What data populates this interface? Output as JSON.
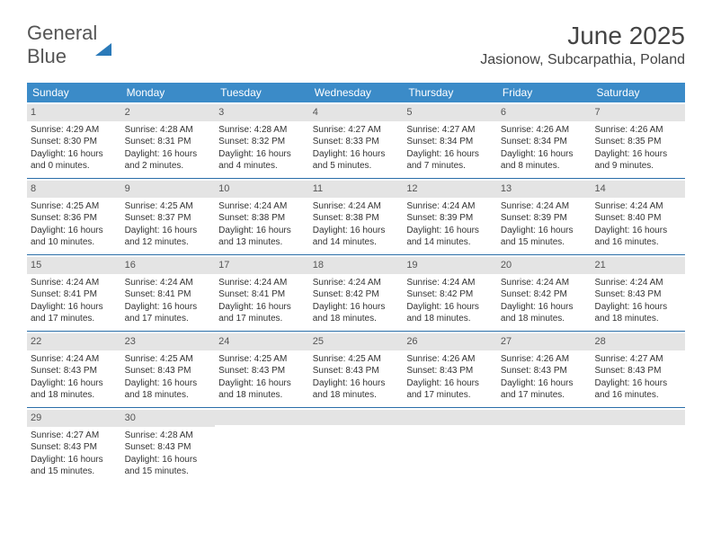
{
  "logo": {
    "word1": "General",
    "word2": "Blue"
  },
  "title": "June 2025",
  "location": "Jasionow, Subcarpathia, Poland",
  "colors": {
    "header_bg": "#3b8bc8",
    "header_text": "#ffffff",
    "daynum_bg": "#e4e4e4",
    "week_divider": "#2a6ea8",
    "body_text": "#333333",
    "logo_gray": "#555555",
    "logo_blue": "#2a7ab9"
  },
  "typography": {
    "title_fontsize": 28,
    "location_fontsize": 16,
    "dow_fontsize": 12,
    "cell_fontsize": 10
  },
  "days_of_week": [
    "Sunday",
    "Monday",
    "Tuesday",
    "Wednesday",
    "Thursday",
    "Friday",
    "Saturday"
  ],
  "weeks": [
    [
      {
        "n": "1",
        "sr": "4:29 AM",
        "ss": "8:30 PM",
        "dlh": "16",
        "dlm": "0"
      },
      {
        "n": "2",
        "sr": "4:28 AM",
        "ss": "8:31 PM",
        "dlh": "16",
        "dlm": "2"
      },
      {
        "n": "3",
        "sr": "4:28 AM",
        "ss": "8:32 PM",
        "dlh": "16",
        "dlm": "4"
      },
      {
        "n": "4",
        "sr": "4:27 AM",
        "ss": "8:33 PM",
        "dlh": "16",
        "dlm": "5"
      },
      {
        "n": "5",
        "sr": "4:27 AM",
        "ss": "8:34 PM",
        "dlh": "16",
        "dlm": "7"
      },
      {
        "n": "6",
        "sr": "4:26 AM",
        "ss": "8:34 PM",
        "dlh": "16",
        "dlm": "8"
      },
      {
        "n": "7",
        "sr": "4:26 AM",
        "ss": "8:35 PM",
        "dlh": "16",
        "dlm": "9"
      }
    ],
    [
      {
        "n": "8",
        "sr": "4:25 AM",
        "ss": "8:36 PM",
        "dlh": "16",
        "dlm": "10"
      },
      {
        "n": "9",
        "sr": "4:25 AM",
        "ss": "8:37 PM",
        "dlh": "16",
        "dlm": "12"
      },
      {
        "n": "10",
        "sr": "4:24 AM",
        "ss": "8:38 PM",
        "dlh": "16",
        "dlm": "13"
      },
      {
        "n": "11",
        "sr": "4:24 AM",
        "ss": "8:38 PM",
        "dlh": "16",
        "dlm": "14"
      },
      {
        "n": "12",
        "sr": "4:24 AM",
        "ss": "8:39 PM",
        "dlh": "16",
        "dlm": "14"
      },
      {
        "n": "13",
        "sr": "4:24 AM",
        "ss": "8:39 PM",
        "dlh": "16",
        "dlm": "15"
      },
      {
        "n": "14",
        "sr": "4:24 AM",
        "ss": "8:40 PM",
        "dlh": "16",
        "dlm": "16"
      }
    ],
    [
      {
        "n": "15",
        "sr": "4:24 AM",
        "ss": "8:41 PM",
        "dlh": "16",
        "dlm": "17"
      },
      {
        "n": "16",
        "sr": "4:24 AM",
        "ss": "8:41 PM",
        "dlh": "16",
        "dlm": "17"
      },
      {
        "n": "17",
        "sr": "4:24 AM",
        "ss": "8:41 PM",
        "dlh": "16",
        "dlm": "17"
      },
      {
        "n": "18",
        "sr": "4:24 AM",
        "ss": "8:42 PM",
        "dlh": "16",
        "dlm": "18"
      },
      {
        "n": "19",
        "sr": "4:24 AM",
        "ss": "8:42 PM",
        "dlh": "16",
        "dlm": "18"
      },
      {
        "n": "20",
        "sr": "4:24 AM",
        "ss": "8:42 PM",
        "dlh": "16",
        "dlm": "18"
      },
      {
        "n": "21",
        "sr": "4:24 AM",
        "ss": "8:43 PM",
        "dlh": "16",
        "dlm": "18"
      }
    ],
    [
      {
        "n": "22",
        "sr": "4:24 AM",
        "ss": "8:43 PM",
        "dlh": "16",
        "dlm": "18"
      },
      {
        "n": "23",
        "sr": "4:25 AM",
        "ss": "8:43 PM",
        "dlh": "16",
        "dlm": "18"
      },
      {
        "n": "24",
        "sr": "4:25 AM",
        "ss": "8:43 PM",
        "dlh": "16",
        "dlm": "18"
      },
      {
        "n": "25",
        "sr": "4:25 AM",
        "ss": "8:43 PM",
        "dlh": "16",
        "dlm": "18"
      },
      {
        "n": "26",
        "sr": "4:26 AM",
        "ss": "8:43 PM",
        "dlh": "16",
        "dlm": "17"
      },
      {
        "n": "27",
        "sr": "4:26 AM",
        "ss": "8:43 PM",
        "dlh": "16",
        "dlm": "17"
      },
      {
        "n": "28",
        "sr": "4:27 AM",
        "ss": "8:43 PM",
        "dlh": "16",
        "dlm": "16"
      }
    ],
    [
      {
        "n": "29",
        "sr": "4:27 AM",
        "ss": "8:43 PM",
        "dlh": "16",
        "dlm": "15"
      },
      {
        "n": "30",
        "sr": "4:28 AM",
        "ss": "8:43 PM",
        "dlh": "16",
        "dlm": "15"
      },
      null,
      null,
      null,
      null,
      null
    ]
  ],
  "labels": {
    "sunrise": "Sunrise:",
    "sunset": "Sunset:",
    "daylight": "Daylight:",
    "hours_word": "hours",
    "and_word": "and",
    "minutes_word": "minutes."
  }
}
